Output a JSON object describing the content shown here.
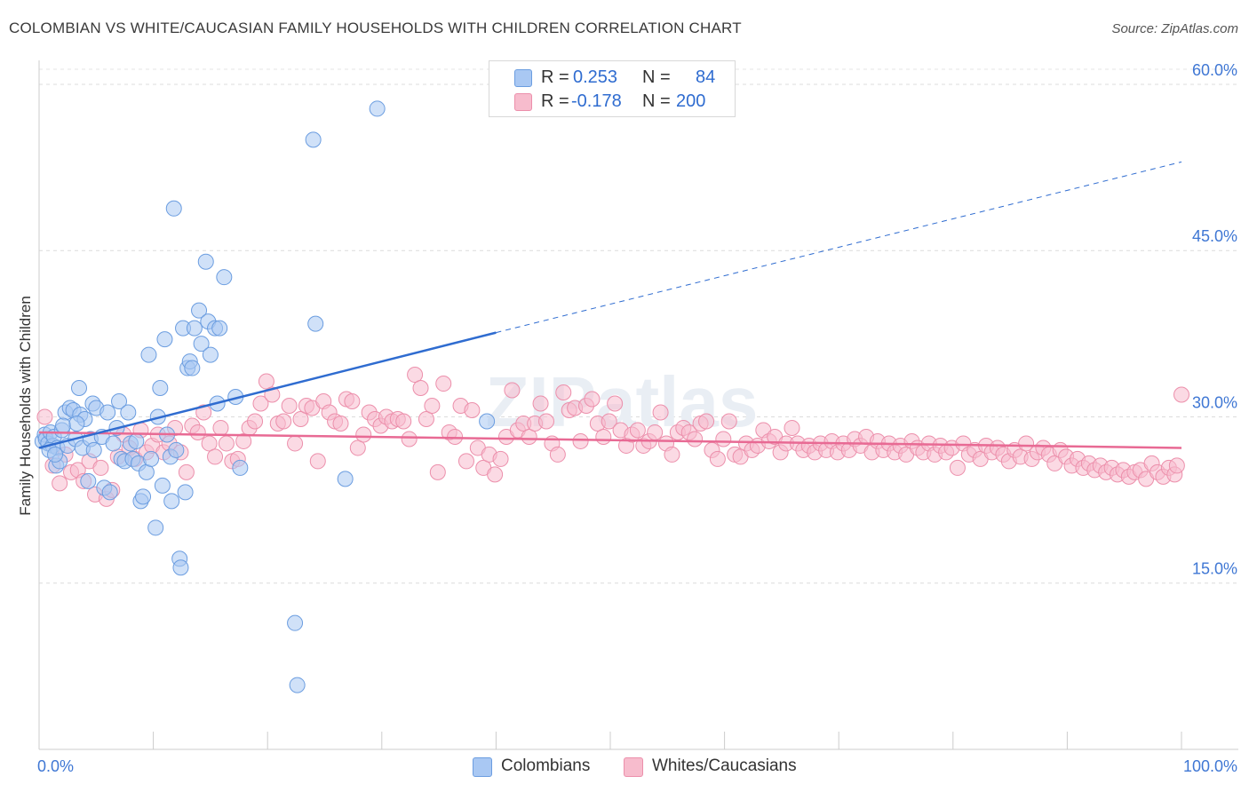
{
  "title": "COLOMBIAN VS WHITE/CAUCASIAN FAMILY HOUSEHOLDS WITH CHILDREN CORRELATION CHART",
  "source": "Source: ZipAtlas.com",
  "watermark": "ZIPatlas",
  "legend": {
    "rows": [
      {
        "r_label": "R =",
        "r_value": "0.253",
        "n_label": "N =",
        "n_value": "84",
        "color": "#a9c8f3"
      },
      {
        "r_label": "R =",
        "r_value": "-0.178",
        "n_label": "N =",
        "n_value": "200",
        "color": "#f7bccd"
      }
    ]
  },
  "bottom_legend": [
    {
      "label": "Colombians",
      "color": "#a9c8f3"
    },
    {
      "label": "Whites/Caucasians",
      "color": "#f7bccd"
    }
  ],
  "chart_data": {
    "type": "scatter",
    "title": "COLOMBIAN VS WHITE/CAUCASIAN FAMILY HOUSEHOLDS WITH CHILDREN CORRELATION CHART",
    "xlabel": "",
    "ylabel": "Family Households with Children",
    "xlim": [
      0,
      100
    ],
    "ylim": [
      0,
      62
    ],
    "x_tick_labels": [
      "0.0%",
      "100.0%"
    ],
    "y_ticks": [
      15,
      30,
      45,
      60
    ],
    "y_tick_labels": [
      "15.0%",
      "30.0%",
      "45.0%",
      "60.0%"
    ],
    "grid": true,
    "legend_position": "top-center",
    "series": [
      {
        "name": "Colombians",
        "color": "#a9c8f3",
        "stroke": "#6b9de0",
        "trend": {
          "color": "#2f6cd0",
          "x_start": 0,
          "y_start": 27.2,
          "x_solid_end": 40,
          "y_solid_end": 37.6,
          "x_dash_end": 100,
          "y_dash_end": 53
        },
        "points": [
          [
            0.3,
            27.8
          ],
          [
            0.5,
            28.4
          ],
          [
            0.6,
            28.0
          ],
          [
            0.8,
            27.6
          ],
          [
            1.0,
            28.6
          ],
          [
            1.2,
            27.4
          ],
          [
            1.3,
            28.2
          ],
          [
            1.5,
            25.6
          ],
          [
            1.6,
            27.2
          ],
          [
            1.8,
            26.0
          ],
          [
            2.0,
            28.8
          ],
          [
            2.3,
            30.4
          ],
          [
            2.5,
            27.4
          ],
          [
            2.7,
            30.8
          ],
          [
            3.0,
            30.6
          ],
          [
            3.2,
            28.0
          ],
          [
            3.5,
            32.6
          ],
          [
            3.6,
            30.2
          ],
          [
            3.8,
            27.2
          ],
          [
            4.0,
            29.8
          ],
          [
            4.3,
            24.2
          ],
          [
            4.5,
            28.0
          ],
          [
            4.7,
            31.2
          ],
          [
            4.8,
            27.0
          ],
          [
            5.0,
            30.8
          ],
          [
            5.5,
            28.2
          ],
          [
            5.7,
            23.6
          ],
          [
            6.0,
            30.4
          ],
          [
            6.2,
            23.2
          ],
          [
            6.5,
            27.6
          ],
          [
            6.8,
            29.0
          ],
          [
            7.0,
            31.4
          ],
          [
            7.2,
            26.2
          ],
          [
            7.5,
            26.0
          ],
          [
            7.8,
            30.4
          ],
          [
            8.0,
            27.6
          ],
          [
            8.2,
            26.2
          ],
          [
            8.5,
            27.8
          ],
          [
            8.7,
            25.8
          ],
          [
            8.9,
            22.4
          ],
          [
            9.1,
            22.8
          ],
          [
            9.4,
            25.0
          ],
          [
            9.6,
            35.6
          ],
          [
            9.8,
            26.2
          ],
          [
            10.2,
            20.0
          ],
          [
            10.4,
            30.0
          ],
          [
            10.6,
            32.6
          ],
          [
            10.8,
            23.8
          ],
          [
            11.0,
            37.0
          ],
          [
            11.2,
            28.4
          ],
          [
            11.5,
            26.4
          ],
          [
            11.6,
            22.4
          ],
          [
            11.8,
            48.8
          ],
          [
            12.0,
            27.0
          ],
          [
            12.3,
            17.2
          ],
          [
            12.4,
            16.4
          ],
          [
            12.6,
            38.0
          ],
          [
            12.8,
            23.2
          ],
          [
            13.0,
            34.4
          ],
          [
            13.2,
            35.0
          ],
          [
            13.4,
            34.4
          ],
          [
            13.6,
            38.0
          ],
          [
            14.0,
            39.6
          ],
          [
            14.2,
            36.6
          ],
          [
            14.6,
            44.0
          ],
          [
            14.8,
            38.6
          ],
          [
            15.0,
            35.6
          ],
          [
            15.4,
            38.0
          ],
          [
            15.6,
            31.2
          ],
          [
            15.8,
            38.0
          ],
          [
            16.2,
            42.6
          ],
          [
            17.2,
            31.8
          ],
          [
            17.6,
            25.4
          ],
          [
            22.4,
            11.4
          ],
          [
            22.6,
            5.8
          ],
          [
            24.0,
            55.0
          ],
          [
            24.2,
            38.4
          ],
          [
            26.8,
            24.4
          ],
          [
            29.6,
            57.8
          ],
          [
            39.2,
            29.6
          ],
          [
            0.9,
            27.0
          ],
          [
            1.4,
            26.6
          ],
          [
            2.1,
            29.2
          ],
          [
            3.3,
            29.4
          ]
        ]
      },
      {
        "name": "Whites/Caucasians",
        "color": "#f7bccd",
        "stroke": "#ec8fab",
        "trend": {
          "color": "#e86a94",
          "x_start": 0,
          "y_start": 28.6,
          "x_end": 100,
          "y_end": 27.2
        },
        "points": [
          [
            0.5,
            30.0
          ],
          [
            1.2,
            25.6
          ],
          [
            1.8,
            24.0
          ],
          [
            2.3,
            26.6
          ],
          [
            2.8,
            25.0
          ],
          [
            3.4,
            25.2
          ],
          [
            3.9,
            24.2
          ],
          [
            4.4,
            26.0
          ],
          [
            4.9,
            23.0
          ],
          [
            5.4,
            25.4
          ],
          [
            5.9,
            22.6
          ],
          [
            6.4,
            23.4
          ],
          [
            6.9,
            26.4
          ],
          [
            7.4,
            28.4
          ],
          [
            7.9,
            27.2
          ],
          [
            8.4,
            26.2
          ],
          [
            8.9,
            28.8
          ],
          [
            9.4,
            26.8
          ],
          [
            9.9,
            27.4
          ],
          [
            10.4,
            28.4
          ],
          [
            10.9,
            26.8
          ],
          [
            11.4,
            27.6
          ],
          [
            11.9,
            29.0
          ],
          [
            12.4,
            26.8
          ],
          [
            12.9,
            25.0
          ],
          [
            13.4,
            29.2
          ],
          [
            13.9,
            28.6
          ],
          [
            14.4,
            30.4
          ],
          [
            14.9,
            27.6
          ],
          [
            15.4,
            26.4
          ],
          [
            15.9,
            29.0
          ],
          [
            16.4,
            27.6
          ],
          [
            16.9,
            26.0
          ],
          [
            17.4,
            26.2
          ],
          [
            17.9,
            27.8
          ],
          [
            18.4,
            29.0
          ],
          [
            18.9,
            29.6
          ],
          [
            19.4,
            31.2
          ],
          [
            19.9,
            33.2
          ],
          [
            20.4,
            32.0
          ],
          [
            20.9,
            29.4
          ],
          [
            21.4,
            29.6
          ],
          [
            21.9,
            31.0
          ],
          [
            22.4,
            27.6
          ],
          [
            22.9,
            29.8
          ],
          [
            23.4,
            31.0
          ],
          [
            23.9,
            30.8
          ],
          [
            24.4,
            26.0
          ],
          [
            24.9,
            31.4
          ],
          [
            25.4,
            30.4
          ],
          [
            25.9,
            29.6
          ],
          [
            26.4,
            29.4
          ],
          [
            26.9,
            31.6
          ],
          [
            27.4,
            31.4
          ],
          [
            27.9,
            27.2
          ],
          [
            28.4,
            28.4
          ],
          [
            28.9,
            30.4
          ],
          [
            29.4,
            29.8
          ],
          [
            29.9,
            29.2
          ],
          [
            30.4,
            30.0
          ],
          [
            30.9,
            29.6
          ],
          [
            31.4,
            29.8
          ],
          [
            31.9,
            29.6
          ],
          [
            32.4,
            28.0
          ],
          [
            32.9,
            33.8
          ],
          [
            33.4,
            32.6
          ],
          [
            33.9,
            29.8
          ],
          [
            34.4,
            31.0
          ],
          [
            34.9,
            25.0
          ],
          [
            35.4,
            33.0
          ],
          [
            35.9,
            28.6
          ],
          [
            36.4,
            28.2
          ],
          [
            36.9,
            31.0
          ],
          [
            37.4,
            26.0
          ],
          [
            37.9,
            30.6
          ],
          [
            38.4,
            27.2
          ],
          [
            38.9,
            25.4
          ],
          [
            39.4,
            26.6
          ],
          [
            39.9,
            24.8
          ],
          [
            40.4,
            26.2
          ],
          [
            40.9,
            28.2
          ],
          [
            41.4,
            32.4
          ],
          [
            41.9,
            28.8
          ],
          [
            42.4,
            29.4
          ],
          [
            42.9,
            28.2
          ],
          [
            43.4,
            29.4
          ],
          [
            43.9,
            31.2
          ],
          [
            44.4,
            29.6
          ],
          [
            44.9,
            27.6
          ],
          [
            45.4,
            26.6
          ],
          [
            45.9,
            32.2
          ],
          [
            46.4,
            30.6
          ],
          [
            46.9,
            30.8
          ],
          [
            47.4,
            27.8
          ],
          [
            47.9,
            31.0
          ],
          [
            48.4,
            31.6
          ],
          [
            48.9,
            29.4
          ],
          [
            49.4,
            28.2
          ],
          [
            49.9,
            29.6
          ],
          [
            50.4,
            31.2
          ],
          [
            50.9,
            28.8
          ],
          [
            51.4,
            27.4
          ],
          [
            51.9,
            28.4
          ],
          [
            52.4,
            28.8
          ],
          [
            52.9,
            27.4
          ],
          [
            53.4,
            27.8
          ],
          [
            53.9,
            28.6
          ],
          [
            54.4,
            30.4
          ],
          [
            54.9,
            27.6
          ],
          [
            55.4,
            26.6
          ],
          [
            55.9,
            28.6
          ],
          [
            56.4,
            29.0
          ],
          [
            56.9,
            28.6
          ],
          [
            57.4,
            28.0
          ],
          [
            57.9,
            29.4
          ],
          [
            58.4,
            29.6
          ],
          [
            58.9,
            27.0
          ],
          [
            59.4,
            26.2
          ],
          [
            59.9,
            28.0
          ],
          [
            60.4,
            29.6
          ],
          [
            60.9,
            26.6
          ],
          [
            61.4,
            26.4
          ],
          [
            61.9,
            27.6
          ],
          [
            62.4,
            27.0
          ],
          [
            62.9,
            27.4
          ],
          [
            63.4,
            28.8
          ],
          [
            63.9,
            27.8
          ],
          [
            64.4,
            28.2
          ],
          [
            64.9,
            26.8
          ],
          [
            65.4,
            27.6
          ],
          [
            65.9,
            29.0
          ],
          [
            66.4,
            27.6
          ],
          [
            66.9,
            27.0
          ],
          [
            67.4,
            27.4
          ],
          [
            67.9,
            26.8
          ],
          [
            68.4,
            27.6
          ],
          [
            68.9,
            27.0
          ],
          [
            69.4,
            27.8
          ],
          [
            69.9,
            26.8
          ],
          [
            70.4,
            27.6
          ],
          [
            70.9,
            27.0
          ],
          [
            71.4,
            28.0
          ],
          [
            71.9,
            27.4
          ],
          [
            72.4,
            28.2
          ],
          [
            72.9,
            26.8
          ],
          [
            73.4,
            27.8
          ],
          [
            73.9,
            27.0
          ],
          [
            74.4,
            27.6
          ],
          [
            74.9,
            26.8
          ],
          [
            75.4,
            27.4
          ],
          [
            75.9,
            26.6
          ],
          [
            76.4,
            27.8
          ],
          [
            76.9,
            27.2
          ],
          [
            77.4,
            26.8
          ],
          [
            77.9,
            27.6
          ],
          [
            78.4,
            26.6
          ],
          [
            78.9,
            27.4
          ],
          [
            79.4,
            26.8
          ],
          [
            79.9,
            27.2
          ],
          [
            80.4,
            25.4
          ],
          [
            80.9,
            27.6
          ],
          [
            81.4,
            26.6
          ],
          [
            81.9,
            27.0
          ],
          [
            82.4,
            26.2
          ],
          [
            82.9,
            27.4
          ],
          [
            83.4,
            26.8
          ],
          [
            83.9,
            27.2
          ],
          [
            84.4,
            26.6
          ],
          [
            84.9,
            26.0
          ],
          [
            85.4,
            27.0
          ],
          [
            85.9,
            26.4
          ],
          [
            86.4,
            27.6
          ],
          [
            86.9,
            26.2
          ],
          [
            87.4,
            26.8
          ],
          [
            87.9,
            27.2
          ],
          [
            88.4,
            26.6
          ],
          [
            88.9,
            25.8
          ],
          [
            89.4,
            27.0
          ],
          [
            89.9,
            26.4
          ],
          [
            90.4,
            25.6
          ],
          [
            90.9,
            26.2
          ],
          [
            91.4,
            25.4
          ],
          [
            91.9,
            25.8
          ],
          [
            92.4,
            25.2
          ],
          [
            92.9,
            25.6
          ],
          [
            93.4,
            25.0
          ],
          [
            93.9,
            25.4
          ],
          [
            94.4,
            24.8
          ],
          [
            94.9,
            25.2
          ],
          [
            95.4,
            24.6
          ],
          [
            95.9,
            25.0
          ],
          [
            96.4,
            25.2
          ],
          [
            96.9,
            24.4
          ],
          [
            97.4,
            25.8
          ],
          [
            97.9,
            25.0
          ],
          [
            98.4,
            24.6
          ],
          [
            98.9,
            25.4
          ],
          [
            99.4,
            24.8
          ],
          [
            99.6,
            25.6
          ],
          [
            100.0,
            32.0
          ]
        ]
      }
    ]
  }
}
